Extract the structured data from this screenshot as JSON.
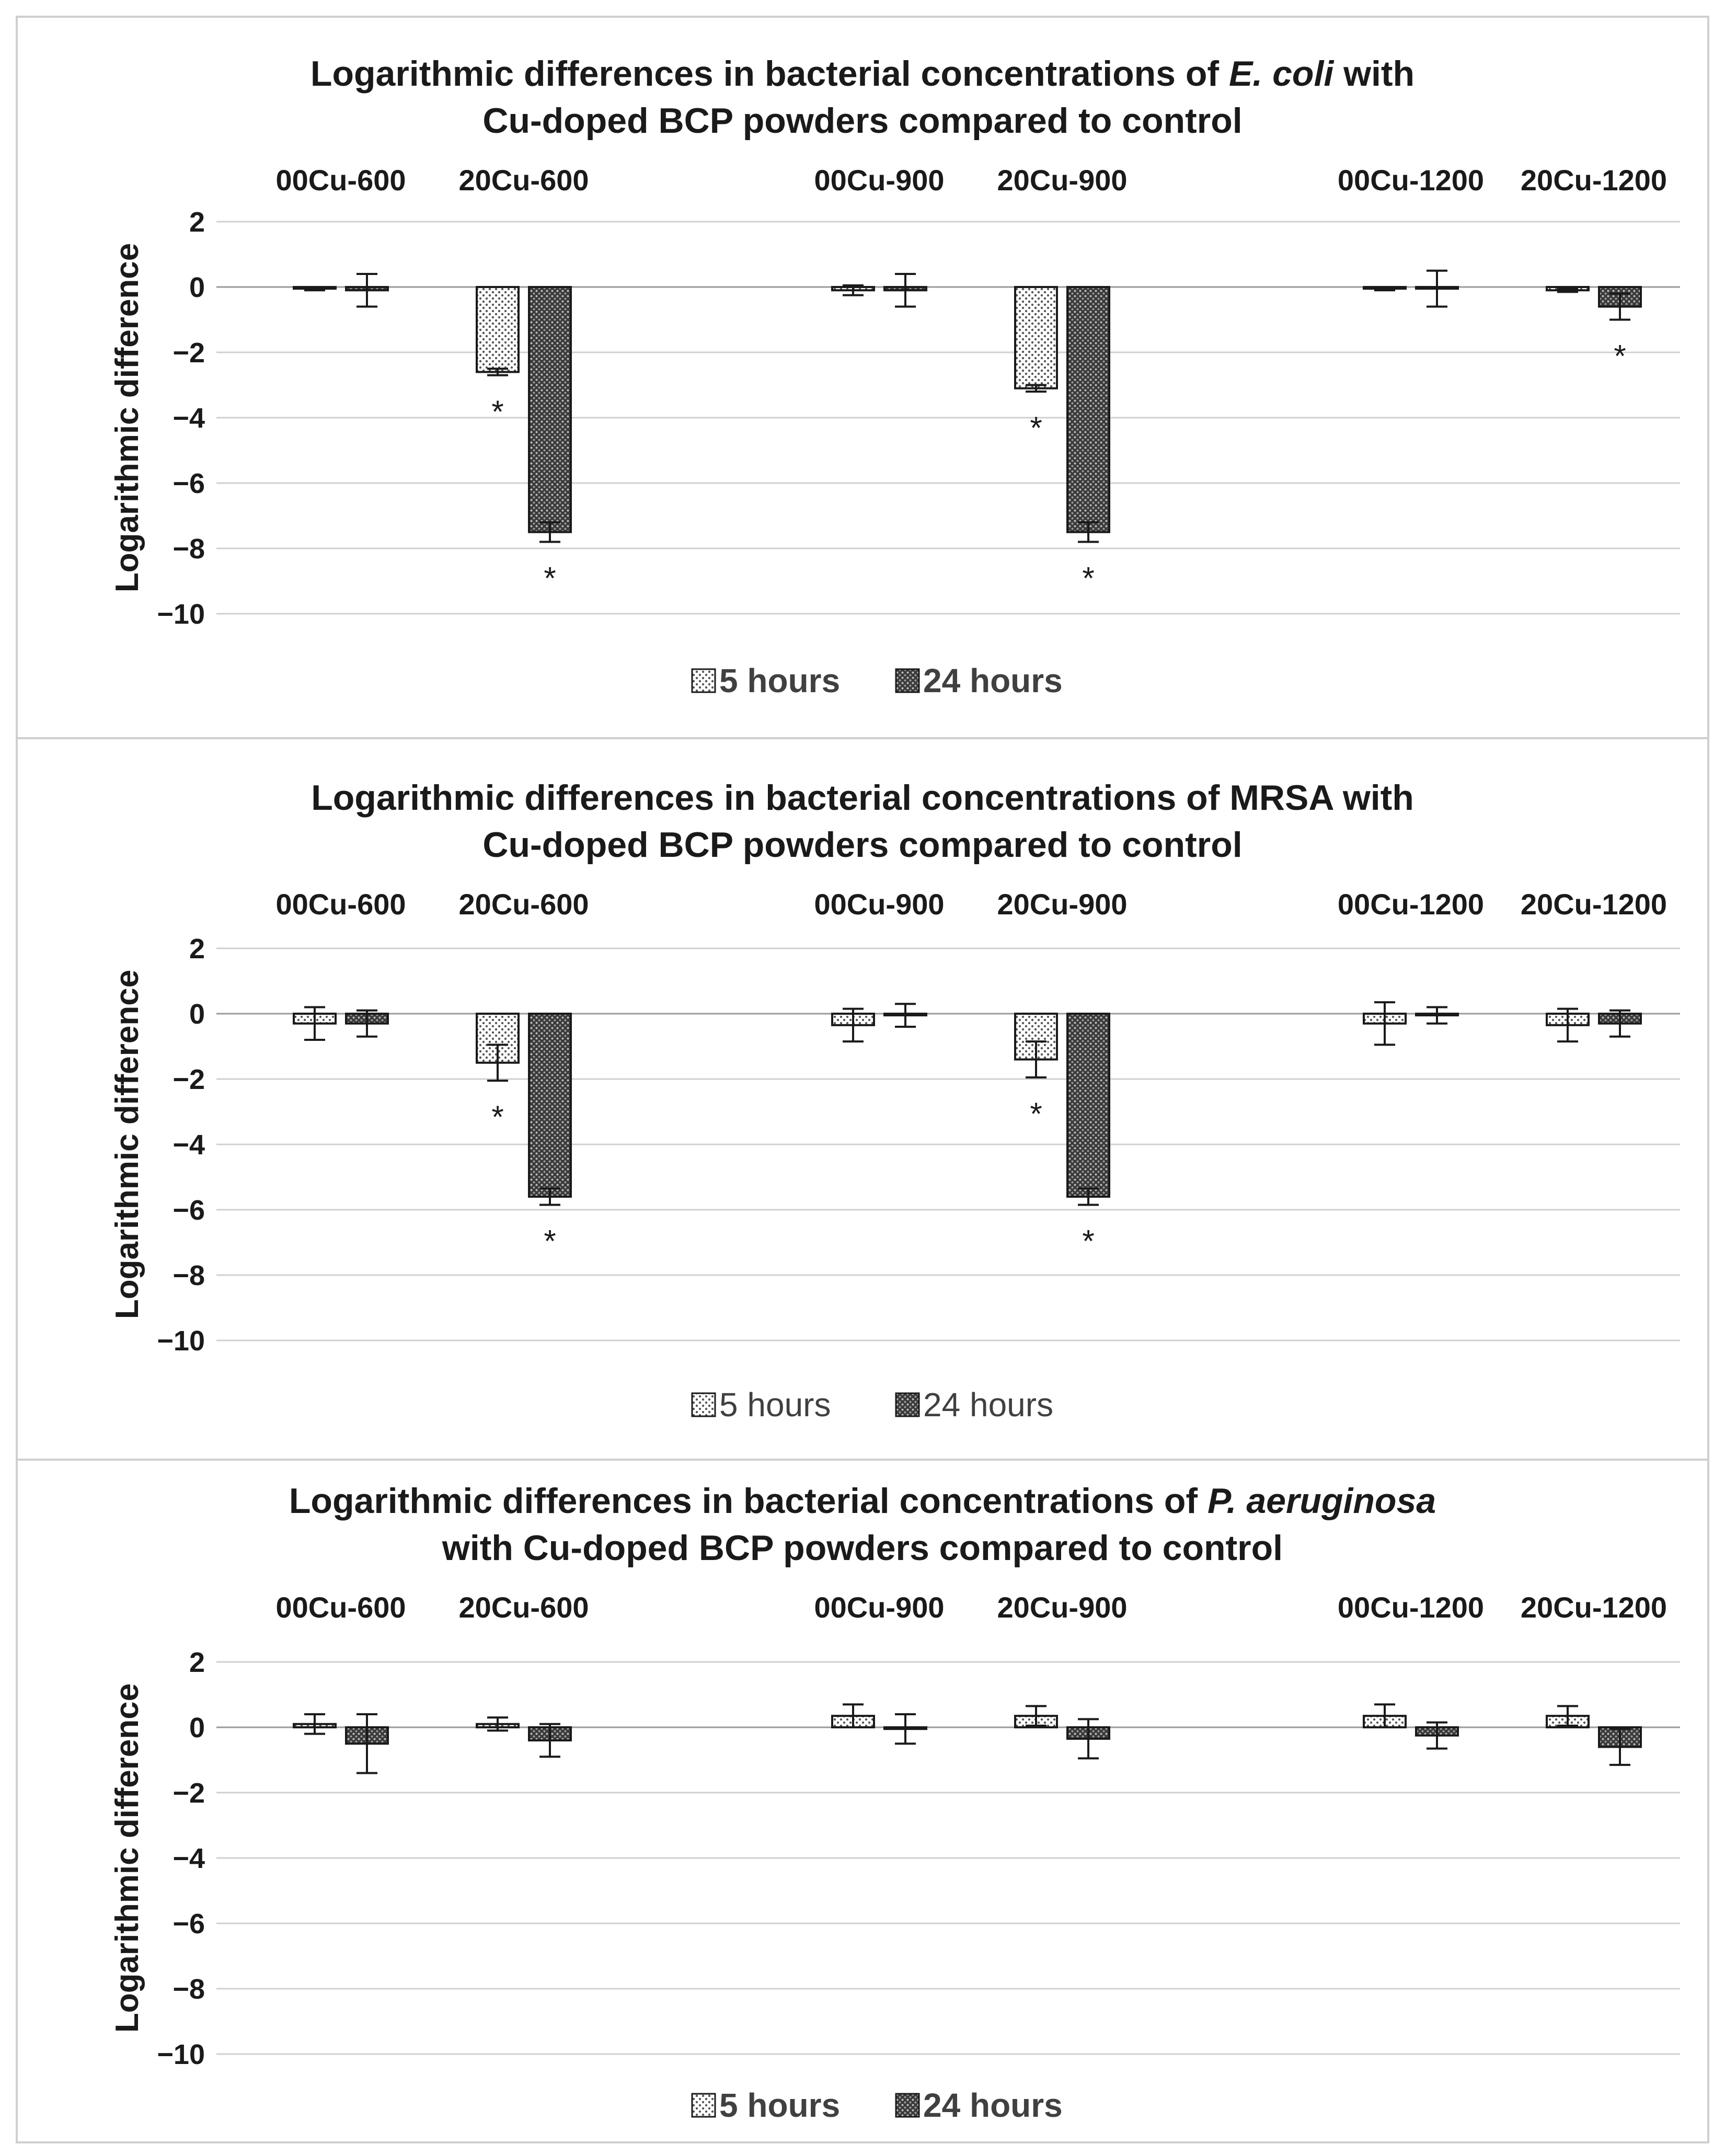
{
  "legend": {
    "five_h": "5 hours",
    "twentyfour_h": "24 hours"
  },
  "chart_data": [
    {
      "type": "bar",
      "title_line1_pre": "Logarithmic differences in bacterial concentrations of ",
      "title_line1_italic": "E. coli",
      "title_line1_post": " with",
      "title_line2": "Cu-doped BCP powders compared to control",
      "ylabel": "Logarithmic difference",
      "ylim": [
        -10,
        2
      ],
      "yticks": [
        2,
        0,
        -2,
        -4,
        -6,
        -8,
        -10
      ],
      "categories": [
        "00Cu-600",
        "20Cu-600",
        "00Cu-900",
        "20Cu-900",
        "00Cu-1200",
        "20Cu-1200"
      ],
      "series": [
        {
          "name": "5 hours",
          "values": [
            -0.05,
            -2.6,
            -0.1,
            -3.1,
            -0.05,
            -0.1
          ],
          "errors": [
            0.05,
            0.1,
            0.15,
            0.1,
            0.05,
            0.05
          ]
        },
        {
          "name": "24 hours",
          "values": [
            -0.1,
            -7.5,
            -0.1,
            -7.5,
            -0.05,
            -0.6
          ],
          "errors": [
            0.5,
            0.3,
            0.5,
            0.3,
            0.55,
            0.4
          ]
        }
      ],
      "significance": [
        {
          "category": 1,
          "series": 0,
          "label": "*"
        },
        {
          "category": 1,
          "series": 1,
          "label": "*"
        },
        {
          "category": 3,
          "series": 0,
          "label": "*"
        },
        {
          "category": 3,
          "series": 1,
          "label": "*"
        },
        {
          "category": 5,
          "series": 1,
          "label": "*"
        }
      ],
      "legend_bold": true
    },
    {
      "type": "bar",
      "title_line1_pre": "Logarithmic differences in bacterial concentrations of MRSA with",
      "title_line1_italic": "",
      "title_line1_post": "",
      "title_line2": "Cu-doped BCP powders compared to control",
      "ylabel": "Logarithmic difference",
      "ylim": [
        -10,
        2
      ],
      "yticks": [
        2,
        0,
        -2,
        -4,
        -6,
        -8,
        -10
      ],
      "categories": [
        "00Cu-600",
        "20Cu-600",
        "00Cu-900",
        "20Cu-900",
        "00Cu-1200",
        "20Cu-1200"
      ],
      "series": [
        {
          "name": "5 hours",
          "values": [
            -0.3,
            -1.5,
            -0.35,
            -1.4,
            -0.3,
            -0.35
          ],
          "errors": [
            0.5,
            0.55,
            0.5,
            0.55,
            0.65,
            0.5
          ]
        },
        {
          "name": "24 hours",
          "values": [
            -0.3,
            -5.6,
            -0.05,
            -5.6,
            -0.05,
            -0.3
          ],
          "errors": [
            0.4,
            0.25,
            0.35,
            0.25,
            0.25,
            0.4
          ]
        }
      ],
      "significance": [
        {
          "category": 1,
          "series": 0,
          "label": "*"
        },
        {
          "category": 1,
          "series": 1,
          "label": "*"
        },
        {
          "category": 3,
          "series": 0,
          "label": "*"
        },
        {
          "category": 3,
          "series": 1,
          "label": "*"
        }
      ],
      "legend_bold": false
    },
    {
      "type": "bar",
      "title_line1_pre": "Logarithmic differences in bacterial concentrations of ",
      "title_line1_italic": "P. aeruginosa",
      "title_line1_post": "",
      "title_line2": "with Cu-doped BCP powders compared to control",
      "ylabel": "Logarithmic difference",
      "ylim": [
        -10,
        2
      ],
      "yticks": [
        2,
        0,
        -2,
        -4,
        -6,
        -8,
        -10
      ],
      "categories": [
        "00Cu-600",
        "20Cu-600",
        "00Cu-900",
        "20Cu-900",
        "00Cu-1200",
        "20Cu-1200"
      ],
      "series": [
        {
          "name": "5 hours",
          "values": [
            0.1,
            0.1,
            0.35,
            0.35,
            0.35,
            0.35
          ],
          "errors": [
            0.3,
            0.2,
            0.35,
            0.3,
            0.35,
            0.3
          ]
        },
        {
          "name": "24 hours",
          "values": [
            -0.5,
            -0.4,
            -0.05,
            -0.35,
            -0.25,
            -0.6
          ],
          "errors": [
            0.9,
            0.5,
            0.45,
            0.6,
            0.4,
            0.55
          ]
        }
      ],
      "significance": [],
      "legend_bold": true
    }
  ]
}
